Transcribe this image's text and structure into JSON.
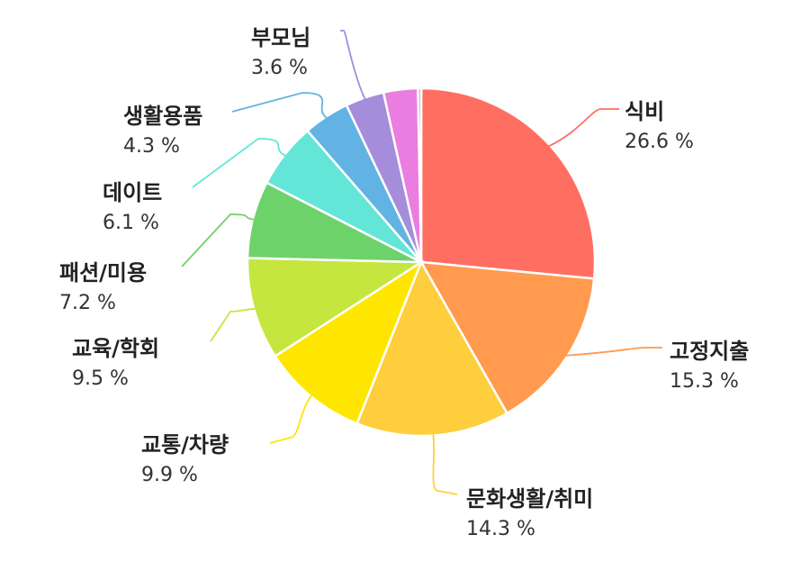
{
  "chart_data": {
    "type": "pie",
    "value_suffix": " %",
    "slices": [
      {
        "label": "식비",
        "value": 26.6,
        "color": "#ff6f61"
      },
      {
        "label": "고정지출",
        "value": 15.3,
        "color": "#ff9a4f"
      },
      {
        "label": "문화생활/취미",
        "value": 14.3,
        "color": "#ffce3d"
      },
      {
        "label": "교통/차량",
        "value": 9.9,
        "color": "#ffe600"
      },
      {
        "label": "교육/학회",
        "value": 9.5,
        "color": "#c4e63f"
      },
      {
        "label": "패션/미용",
        "value": 7.2,
        "color": "#6ed26b"
      },
      {
        "label": "데이트",
        "value": 6.1,
        "color": "#63e6d8"
      },
      {
        "label": "생활용품",
        "value": 4.3,
        "color": "#62b3e3"
      },
      {
        "label": "부모님",
        "value": 3.6,
        "color": "#a58ddb"
      },
      {
        "label": "",
        "value": 3.2,
        "color": "#ea7de0"
      },
      {
        "label": "",
        "value": 0.3,
        "color": "#aaaaaa"
      }
    ]
  }
}
